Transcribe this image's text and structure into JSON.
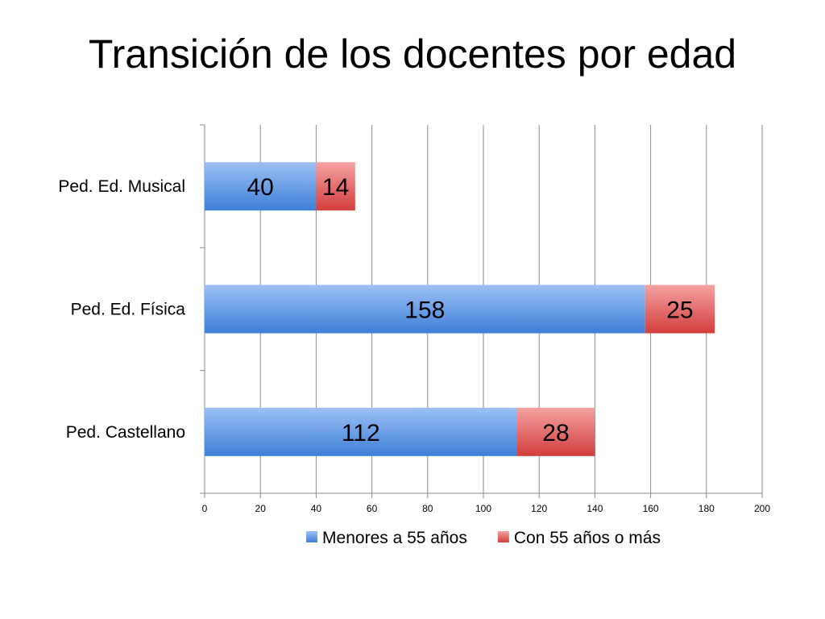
{
  "slide": {
    "title": "Transición de los docentes por edad"
  },
  "chart_data": {
    "type": "bar",
    "orientation": "horizontal",
    "stacked": true,
    "title": "",
    "xlabel": "",
    "ylabel": "",
    "categories": [
      "Ped. Ed. Musical",
      "Ped. Ed. Física",
      "Ped. Castellano"
    ],
    "series": [
      {
        "name": "Menores a 55 años",
        "values": [
          40,
          158,
          112
        ],
        "color_light": "#9cc0f4",
        "color_dark": "#3f7fd8"
      },
      {
        "name": "Con 55 años o más",
        "values": [
          14,
          25,
          28
        ],
        "color_light": "#f5a2a2",
        "color_dark": "#d33d3d"
      }
    ],
    "xlim": [
      0,
      200
    ],
    "x_ticks": [
      0,
      20,
      40,
      60,
      80,
      100,
      120,
      140,
      160,
      180,
      200
    ],
    "grid": true,
    "legend": "bottom"
  }
}
